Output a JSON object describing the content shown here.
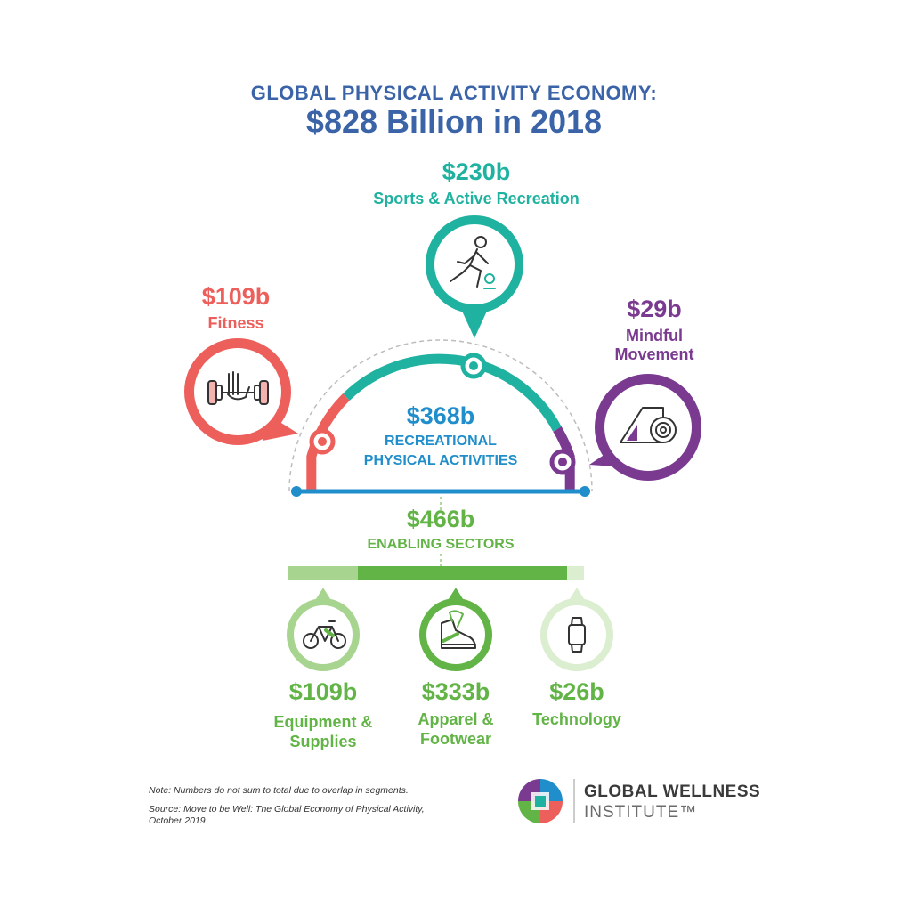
{
  "title": {
    "line1": "GLOBAL PHYSICAL ACTIVITY ECONOMY:",
    "line2": "$828 Billion in 2018"
  },
  "colors": {
    "teal": "#1fb2a0",
    "coral": "#ec5f5b",
    "purple": "#7a3a90",
    "blue": "#1f8ecb",
    "green": "#62b446",
    "green_light": "#a7d58f",
    "green_pale": "#dbeed0",
    "title_blue": "#3b64a8"
  },
  "recreational": {
    "amount": "$368b",
    "label_line1": "RECREATIONAL",
    "label_line2": "PHYSICAL ACTIVITIES",
    "segments": [
      {
        "amount": "$109b",
        "label": "Fitness",
        "icon": "barbell-icon",
        "color": "#ec5f5b",
        "value": 109
      },
      {
        "amount": "$230b",
        "label": "Sports & Active Recreation",
        "icon": "basketball-player-icon",
        "color": "#1fb2a0",
        "value": 230
      },
      {
        "amount": "$29b",
        "label_line1": "Mindful",
        "label_line2": "Movement",
        "icon": "yoga-mat-icon",
        "color": "#7a3a90",
        "value": 29
      }
    ]
  },
  "enabling": {
    "amount": "$466b",
    "label": "ENABLING SECTORS",
    "sectors": [
      {
        "amount": "$109b",
        "label_line1": "Equipment &",
        "label_line2": "Supplies",
        "icon": "bicycle-icon",
        "value": 109
      },
      {
        "amount": "$333b",
        "label_line1": "Apparel &",
        "label_line2": "Footwear",
        "icon": "sneaker-icon",
        "value": 333
      },
      {
        "amount": "$26b",
        "label_line1": "Technology",
        "label_line2": "",
        "icon": "smartwatch-icon",
        "value": 26
      }
    ]
  },
  "footer": {
    "note": "Note: Numbers do not sum to total due to overlap in segments.",
    "source_line1": "Source: Move to be Well: The Global Economy of Physical Activity,",
    "source_line2": "October 2019",
    "brand_line1": "GLOBAL WELLNESS",
    "brand_line2": "INSTITUTE™"
  }
}
